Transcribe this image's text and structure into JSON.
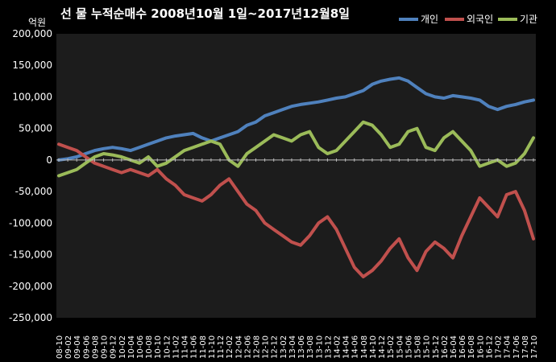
{
  "chart_data": {
    "type": "line",
    "title": "선 물  누적순매수 2008년10월 1일~2017년12월8일",
    "ylabel": "억원",
    "xlabel": "",
    "ylim": [
      -250000,
      200000
    ],
    "yticks": [
      200000,
      150000,
      100000,
      50000,
      0,
      -50000,
      -100000,
      -150000,
      -200000,
      -250000
    ],
    "ytick_labels": [
      "200,000",
      "150,000",
      "100,000",
      "50,000",
      "0",
      "-50,000",
      "-100,000",
      "-150,000",
      "-200,000",
      "-250,000"
    ],
    "grid": false,
    "legend": "top-right",
    "categories": [
      "08-10",
      "09-02",
      "09-04",
      "09-06",
      "09-08",
      "09-10",
      "09-12",
      "10-02",
      "10-04",
      "10-06",
      "10-08",
      "10-10",
      "10-12",
      "11-02",
      "11-04",
      "11-06",
      "11-08",
      "11-10",
      "11-12",
      "12-02",
      "12-04",
      "12-06",
      "12-08",
      "12-10",
      "12-12",
      "13-02",
      "13-04",
      "13-06",
      "13-08",
      "13-10",
      "13-12",
      "14-02",
      "14-04",
      "14-06",
      "14-08",
      "14-10",
      "14-12",
      "15-02",
      "15-04",
      "15-06",
      "15-08",
      "15-10",
      "15-12",
      "16-02",
      "16-04",
      "16-06",
      "16-08",
      "16-10",
      "16-12",
      "17-02",
      "17-04",
      "17-06",
      "17-08",
      "17-10"
    ],
    "series": [
      {
        "name": "개인",
        "color": "#4f81bd",
        "values": [
          0,
          2000,
          5000,
          10000,
          15000,
          18000,
          20000,
          18000,
          15000,
          20000,
          25000,
          30000,
          35000,
          38000,
          40000,
          42000,
          35000,
          30000,
          35000,
          40000,
          45000,
          55000,
          60000,
          70000,
          75000,
          80000,
          85000,
          88000,
          90000,
          92000,
          95000,
          98000,
          100000,
          105000,
          110000,
          120000,
          125000,
          128000,
          130000,
          125000,
          115000,
          105000,
          100000,
          98000,
          102000,
          100000,
          98000,
          95000,
          85000,
          80000,
          85000,
          88000,
          92000,
          95000
        ]
      },
      {
        "name": "외국인",
        "color": "#c0504d",
        "values": [
          25000,
          20000,
          15000,
          5000,
          -5000,
          -10000,
          -15000,
          -20000,
          -15000,
          -20000,
          -25000,
          -15000,
          -30000,
          -40000,
          -55000,
          -60000,
          -65000,
          -55000,
          -40000,
          -30000,
          -50000,
          -70000,
          -80000,
          -100000,
          -110000,
          -120000,
          -130000,
          -135000,
          -120000,
          -100000,
          -90000,
          -110000,
          -140000,
          -170000,
          -185000,
          -175000,
          -160000,
          -140000,
          -125000,
          -155000,
          -175000,
          -145000,
          -130000,
          -140000,
          -155000,
          -120000,
          -90000,
          -60000,
          -75000,
          -90000,
          -55000,
          -50000,
          -80000,
          -125000
        ]
      },
      {
        "name": "기관",
        "color": "#9bbb59",
        "values": [
          -25000,
          -20000,
          -15000,
          -5000,
          5000,
          10000,
          8000,
          5000,
          0,
          -5000,
          5000,
          -10000,
          -5000,
          5000,
          15000,
          20000,
          25000,
          30000,
          25000,
          0,
          -10000,
          10000,
          20000,
          30000,
          40000,
          35000,
          30000,
          40000,
          45000,
          20000,
          10000,
          15000,
          30000,
          45000,
          60000,
          55000,
          40000,
          20000,
          25000,
          45000,
          50000,
          20000,
          15000,
          35000,
          45000,
          30000,
          15000,
          -10000,
          -5000,
          0,
          -10000,
          -5000,
          10000,
          35000
        ]
      }
    ]
  }
}
